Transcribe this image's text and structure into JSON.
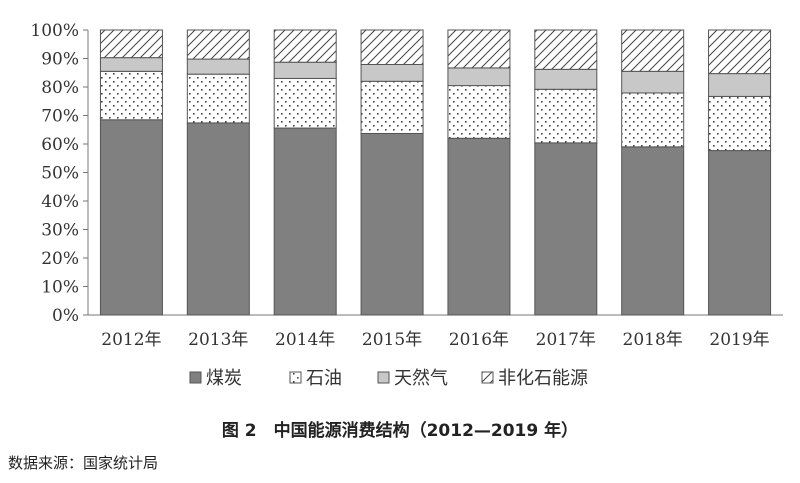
{
  "chart_data": {
    "type": "bar",
    "stacked": true,
    "percent": true,
    "categories": [
      "2012年",
      "2013年",
      "2014年",
      "2015年",
      "2016年",
      "2017年",
      "2018年",
      "2019年"
    ],
    "series": [
      {
        "name": "煤炭",
        "values": [
          68.5,
          67.4,
          65.6,
          63.7,
          62.0,
          60.4,
          59.0,
          57.7
        ]
      },
      {
        "name": "石油",
        "values": [
          17.0,
          17.1,
          17.4,
          18.3,
          18.5,
          18.8,
          18.9,
          19.0
        ]
      },
      {
        "name": "天然气",
        "values": [
          4.8,
          5.3,
          5.7,
          5.9,
          6.2,
          7.0,
          7.6,
          8.0
        ]
      },
      {
        "name": "非化石能源",
        "values": [
          9.7,
          10.2,
          11.3,
          12.1,
          13.3,
          13.8,
          14.5,
          15.3
        ]
      }
    ],
    "y_ticks": [
      "0%",
      "10%",
      "20%",
      "30%",
      "40%",
      "50%",
      "60%",
      "70%",
      "80%",
      "90%",
      "100%"
    ],
    "ylim": [
      0,
      100
    ],
    "grid": false,
    "legend_position": "bottom",
    "caption": "图 2　中国能源消费结构（2012—2019 年）",
    "source": "数据来源：国家统计局",
    "colors": {
      "coal": "#808080",
      "oil": "#ffffff",
      "gas": "#c8c8c8",
      "nonfossil": "#ffffff",
      "outline": "#555555"
    }
  }
}
